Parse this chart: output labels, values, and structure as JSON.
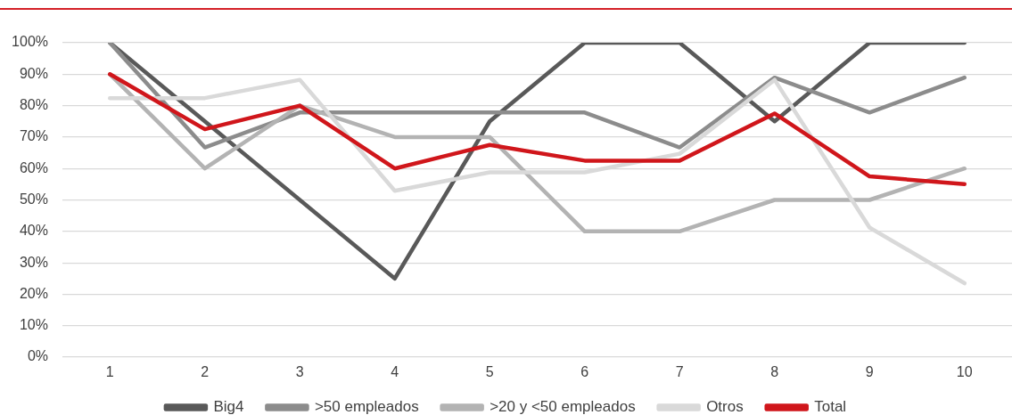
{
  "chart_data": {
    "type": "line",
    "categories": [
      "1",
      "2",
      "3",
      "4",
      "5",
      "6",
      "7",
      "8",
      "9",
      "10"
    ],
    "series": [
      {
        "name": "Big4",
        "color": "#595959",
        "values": [
          100,
          75,
          50,
          25,
          75,
          100,
          100,
          75,
          100,
          100
        ]
      },
      {
        "name": ">50 empleados",
        "color": "#8c8c8c",
        "values": [
          100,
          66.7,
          77.8,
          77.8,
          77.8,
          77.8,
          66.7,
          88.9,
          77.8,
          88.9
        ]
      },
      {
        "name": ">20 y <50 empleados",
        "color": "#b3b3b3",
        "values": [
          90,
          60,
          80,
          70,
          70,
          40,
          40,
          50,
          50,
          60
        ]
      },
      {
        "name": "Otros",
        "color": "#d9d9d9",
        "values": [
          82.4,
          82.4,
          88.2,
          52.9,
          58.8,
          58.8,
          64.7,
          88.2,
          41.2,
          23.5
        ]
      },
      {
        "name": "Total",
        "color": "#d0161b",
        "values": [
          90,
          72.5,
          80,
          60,
          67.5,
          62.5,
          62.5,
          77.5,
          57.5,
          55
        ]
      }
    ],
    "ylim": [
      0,
      100
    ],
    "yticks": [
      {
        "value": 0,
        "label": "0%"
      },
      {
        "value": 10,
        "label": "10%"
      },
      {
        "value": 20,
        "label": "20%"
      },
      {
        "value": 30,
        "label": "30%"
      },
      {
        "value": 40,
        "label": "40%"
      },
      {
        "value": 50,
        "label": "50%"
      },
      {
        "value": 60,
        "label": "60%"
      },
      {
        "value": 70,
        "label": "70%"
      },
      {
        "value": 80,
        "label": "80%"
      },
      {
        "value": 90,
        "label": "90%"
      },
      {
        "value": 100,
        "label": "100%"
      }
    ],
    "grid": "y",
    "legend": "bottom",
    "marker": "none",
    "line_style": "solid"
  }
}
